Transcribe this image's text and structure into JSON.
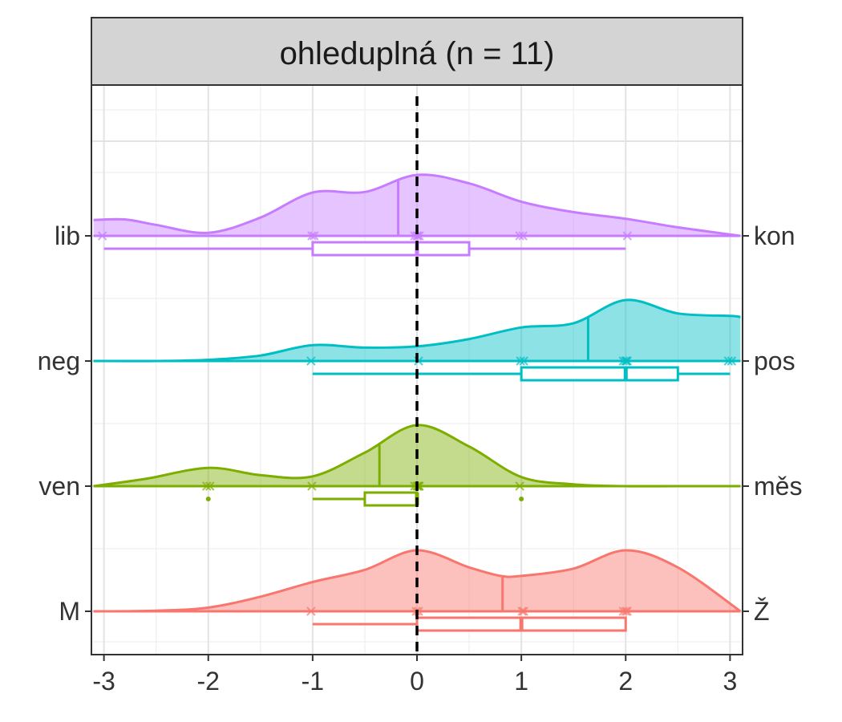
{
  "chart_data": {
    "type": "density-boxplot",
    "panel_title": "ohleduplná (n = 11)",
    "xlim": [
      -3.12,
      3.12
    ],
    "x_ticks": [
      -3,
      -2,
      -1,
      0,
      1,
      2,
      3
    ],
    "x_tick_labels": [
      "-3",
      "-2",
      "-1",
      "0",
      "1",
      "2",
      "3"
    ],
    "reference_line_x": 0,
    "grid": true,
    "series": [
      {
        "left_label": "lib",
        "right_label": "kon",
        "color": "#C77CFF",
        "mean": -0.18,
        "points": [
          -3,
          -1,
          -1,
          0,
          0,
          0,
          0,
          1,
          1,
          2
        ],
        "box": {
          "whisker_low": -3,
          "q1": -1,
          "median": 0,
          "q3": 0.5,
          "whisker_high": 2
        },
        "outliers": [],
        "density_x": [
          -3.1,
          -2.8,
          -2.5,
          -2.0,
          -1.5,
          -1.0,
          -0.5,
          0.0,
          0.5,
          1.0,
          1.5,
          2.0,
          2.5,
          3.1
        ],
        "density_y": [
          0.26,
          0.27,
          0.18,
          0.05,
          0.3,
          0.71,
          0.72,
          1.0,
          0.86,
          0.56,
          0.39,
          0.28,
          0.14,
          0.0
        ]
      },
      {
        "left_label": "neg",
        "right_label": "pos",
        "color": "#00BFC4",
        "mean": 1.64,
        "points": [
          -1,
          0,
          1,
          1,
          2,
          2,
          2,
          2,
          3,
          3
        ],
        "box": {
          "whisker_low": -1,
          "q1": 1,
          "median": 2,
          "q3": 2.5,
          "whisker_high": 3
        },
        "outliers": [],
        "density_x": [
          -3.1,
          -2.5,
          -2.0,
          -1.5,
          -1.0,
          -0.5,
          0.0,
          0.5,
          1.0,
          1.5,
          2.0,
          2.5,
          3.0,
          3.1
        ],
        "density_y": [
          0.0,
          0.0,
          0.02,
          0.09,
          0.26,
          0.22,
          0.24,
          0.36,
          0.55,
          0.62,
          1.0,
          0.78,
          0.74,
          0.72
        ]
      },
      {
        "left_label": "ven",
        "right_label": "měs",
        "color": "#7CAE00",
        "mean": -0.36,
        "points": [
          -2,
          -2,
          -1,
          0,
          0,
          0,
          0,
          0,
          1
        ],
        "box": {
          "whisker_low": -1,
          "q1": -0.5,
          "median": 0,
          "q3": 0,
          "whisker_high": 0
        },
        "outliers": [
          -2,
          1
        ],
        "density_x": [
          -3.1,
          -2.6,
          -2.0,
          -1.5,
          -1.0,
          -0.5,
          0.0,
          0.5,
          1.0,
          1.5,
          2.0,
          2.5,
          3.1
        ],
        "density_y": [
          0.0,
          0.12,
          0.3,
          0.18,
          0.16,
          0.55,
          1.0,
          0.65,
          0.15,
          0.03,
          0.0,
          0.0,
          0.0
        ]
      },
      {
        "left_label": "M",
        "right_label": "Ž",
        "color": "#F8766D",
        "mean": 0.82,
        "points": [
          -1,
          0,
          0,
          1,
          1,
          2,
          2,
          2
        ],
        "box": {
          "whisker_low": -1,
          "q1": 0,
          "median": 1,
          "q3": 2,
          "whisker_high": 2
        },
        "outliers": [],
        "density_x": [
          -3.1,
          -2.5,
          -2.0,
          -1.5,
          -1.0,
          -0.5,
          0.0,
          0.5,
          0.8,
          1.0,
          1.5,
          2.0,
          2.5,
          3.1
        ],
        "density_y": [
          0.0,
          0.01,
          0.06,
          0.24,
          0.48,
          0.68,
          1.0,
          0.72,
          0.58,
          0.58,
          0.7,
          1.0,
          0.72,
          0.0
        ]
      }
    ]
  }
}
